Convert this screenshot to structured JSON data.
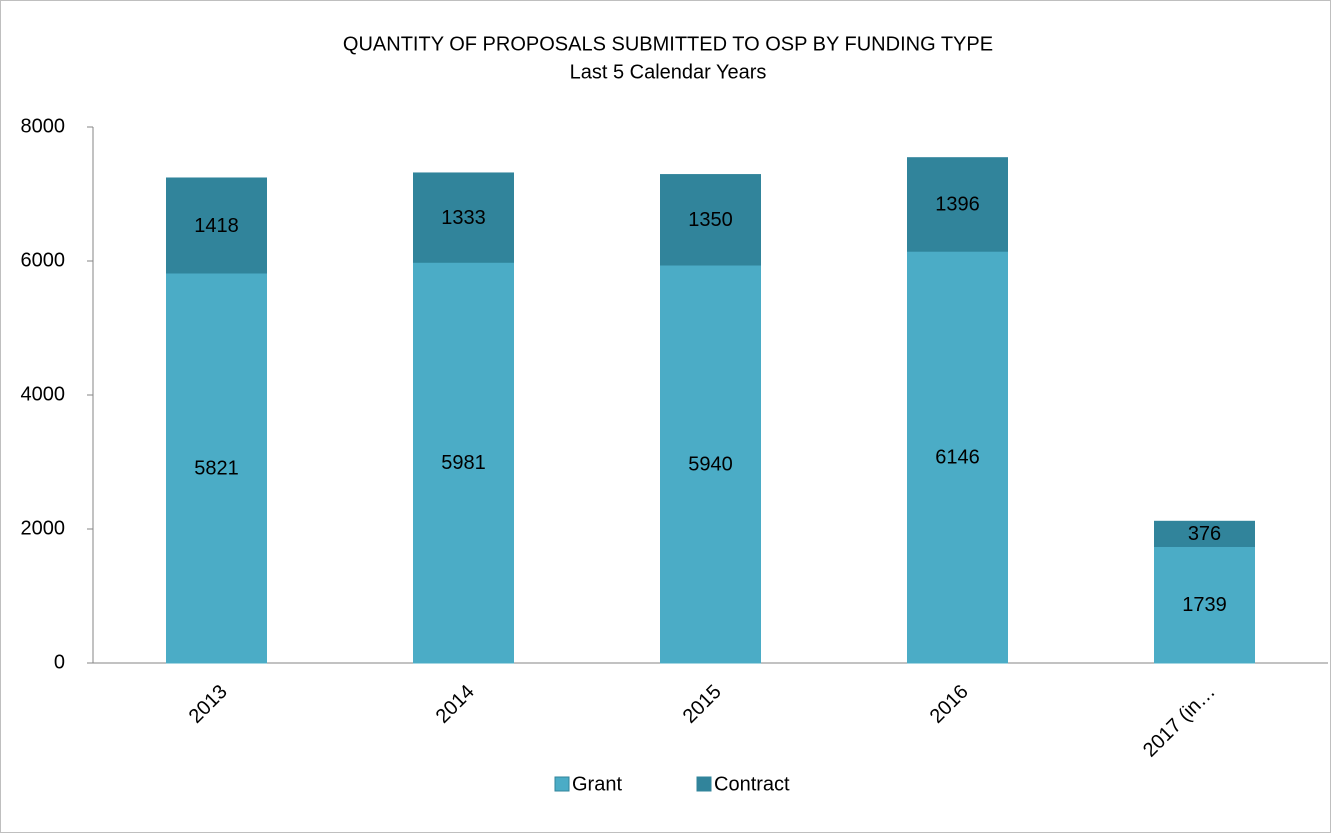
{
  "chart_data": {
    "type": "stacked_bar",
    "title": "QUANTITY OF PROPOSALS SUBMITTED TO OSP BY FUNDING TYPE",
    "subtitle": "Last 5 Calendar Years",
    "categories": [
      "2013",
      "2014",
      "2015",
      "2016",
      "2017 (in…"
    ],
    "series": [
      {
        "name": "Grant",
        "color": "#4bacc6",
        "values": [
          5821,
          5981,
          5940,
          6146,
          1739
        ]
      },
      {
        "name": "Contract",
        "color": "#31849b",
        "values": [
          1418,
          1333,
          1350,
          1396,
          376
        ]
      }
    ],
    "ylim": [
      0,
      8000
    ],
    "yticks": [
      0,
      2000,
      4000,
      6000,
      8000
    ],
    "grid": false,
    "legend": "bottom"
  }
}
